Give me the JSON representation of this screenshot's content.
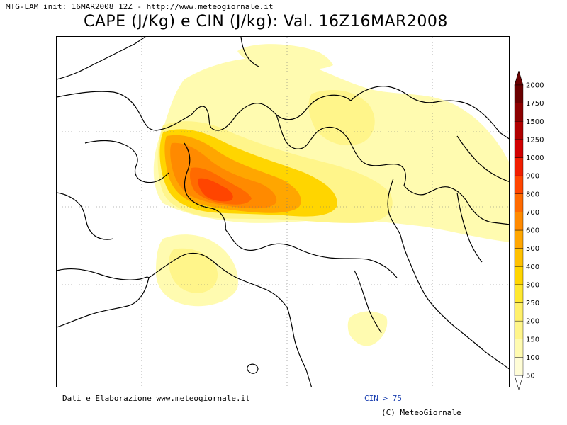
{
  "header": {
    "model_info": "MTG-LAM init: 16MAR2008 12Z - http://www.meteogiornale.it",
    "title": "CAPE (J/Kg) e CIN (J/kg): Val. 16Z16MAR2008"
  },
  "map": {
    "region": "northern-italy-alps",
    "palette": [
      "#fffbb0",
      "#fff58a",
      "#ffe830",
      "#ffd500",
      "#ffc100",
      "#ffa600",
      "#ff8a00",
      "#ff6a00",
      "#ff4500",
      "#f01e00",
      "#d00000",
      "#b00000",
      "#8c0000",
      "#6a0000"
    ]
  },
  "colorbar": {
    "levels": [
      "50",
      "100",
      "150",
      "200",
      "250",
      "300",
      "400",
      "500",
      "600",
      "700",
      "800",
      "900",
      "1000",
      "1250",
      "1500",
      "1750",
      "2000"
    ],
    "colors": [
      "#fffdd6",
      "#fffbb0",
      "#fff58a",
      "#fff06a",
      "#ffe830",
      "#ffd500",
      "#ffc100",
      "#ffa600",
      "#ff8a00",
      "#ff6a00",
      "#ff4500",
      "#f01e00",
      "#d00000",
      "#b00000",
      "#8c0000",
      "#6a0000"
    ]
  },
  "footer": {
    "credits": "Dati e Elaborazione www.meteogiornale.it",
    "cin_legend": "CIN > 75",
    "copyright": "(C) MeteoGiornale"
  }
}
